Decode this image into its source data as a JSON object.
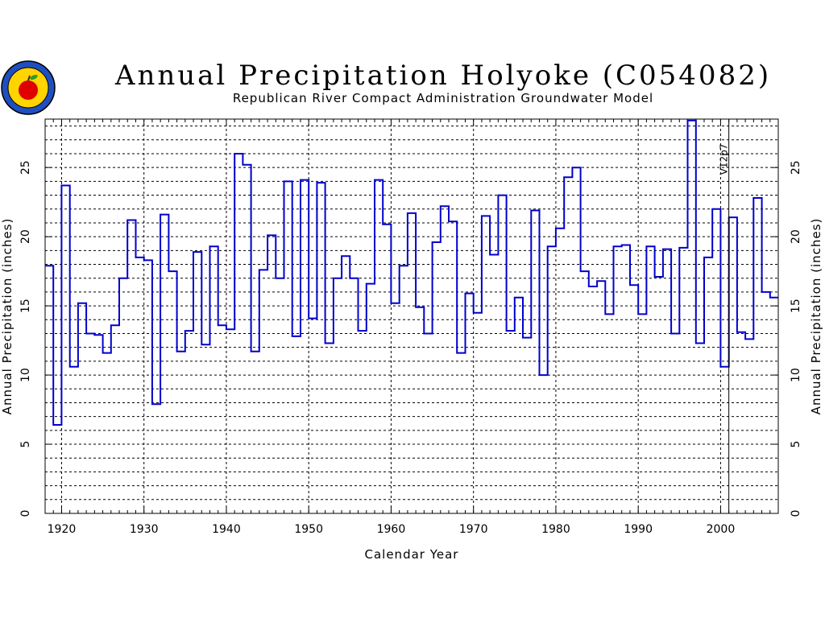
{
  "title": "Annual Precipitation Holyoke (C054082)",
  "subtitle": "Republican River Compact Administration Groundwater Model",
  "logo": {
    "icon": "apple-seal-icon"
  },
  "chart_data": {
    "type": "line",
    "step": true,
    "title": "Annual Precipitation Holyoke (C054082)",
    "subtitle": "Republican River Compact Administration Groundwater Model",
    "xlabel": "Calendar Year",
    "ylabel": "Annual Precipitation (inches)",
    "ylabel_right": "Annual Precipitation (inches)",
    "xlim": [
      1918,
      2007
    ],
    "ylim": [
      0,
      28.5
    ],
    "x_ticks": [
      1920,
      1930,
      1940,
      1950,
      1960,
      1970,
      1980,
      1990,
      2000
    ],
    "y_ticks": [
      0,
      5,
      10,
      15,
      20,
      25
    ],
    "grid": true,
    "series_color": "#0000cc",
    "marker": {
      "x": 2001,
      "label": "V12p7"
    },
    "x": [
      1918,
      1919,
      1920,
      1921,
      1922,
      1923,
      1924,
      1925,
      1926,
      1927,
      1928,
      1929,
      1930,
      1931,
      1932,
      1933,
      1934,
      1935,
      1936,
      1937,
      1938,
      1939,
      1940,
      1941,
      1942,
      1943,
      1944,
      1945,
      1946,
      1947,
      1948,
      1949,
      1950,
      1951,
      1952,
      1953,
      1954,
      1955,
      1956,
      1957,
      1958,
      1959,
      1960,
      1961,
      1962,
      1963,
      1964,
      1965,
      1966,
      1967,
      1968,
      1969,
      1970,
      1971,
      1972,
      1973,
      1974,
      1975,
      1976,
      1977,
      1978,
      1979,
      1980,
      1981,
      1982,
      1983,
      1984,
      1985,
      1986,
      1987,
      1988,
      1989,
      1990,
      1991,
      1992,
      1993,
      1994,
      1995,
      1996,
      1997,
      1998,
      1999,
      2000,
      2001,
      2002,
      2003,
      2004,
      2005,
      2006
    ],
    "values": [
      17.9,
      6.4,
      23.7,
      10.6,
      15.2,
      13.0,
      12.9,
      11.6,
      13.6,
      17.0,
      21.2,
      18.5,
      18.3,
      7.9,
      21.6,
      17.5,
      11.7,
      13.2,
      18.9,
      12.2,
      19.3,
      13.6,
      13.3,
      26.0,
      25.2,
      11.7,
      17.6,
      20.1,
      17.0,
      24.0,
      12.8,
      24.1,
      14.1,
      23.9,
      12.3,
      17.0,
      18.6,
      17.0,
      13.2,
      16.6,
      24.1,
      20.9,
      15.2,
      17.9,
      21.7,
      14.9,
      13.0,
      19.6,
      22.2,
      21.1,
      11.6,
      15.9,
      14.5,
      21.5,
      18.7,
      23.0,
      13.2,
      15.6,
      12.7,
      21.9,
      10.0,
      19.3,
      20.6,
      24.3,
      25.0,
      17.5,
      16.4,
      16.8,
      14.4,
      19.3,
      19.4,
      16.5,
      14.4,
      19.3,
      17.1,
      19.1,
      13.0,
      19.2,
      28.4,
      12.3,
      18.5,
      22.0,
      10.6,
      21.4,
      13.1,
      12.6,
      22.8,
      16.0,
      15.6
    ]
  }
}
